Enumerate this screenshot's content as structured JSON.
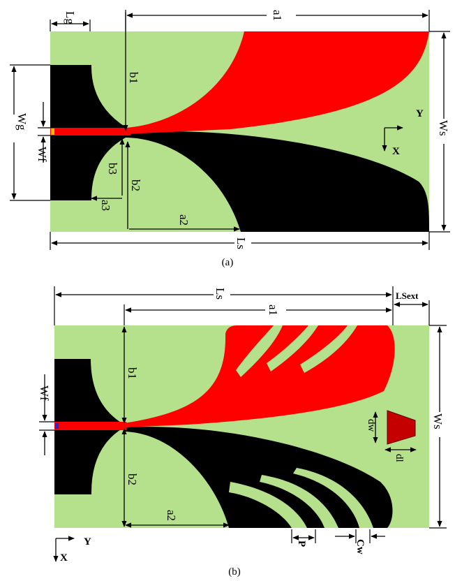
{
  "colors": {
    "substrate": "#b5e08c",
    "top_metal": "#ff0000",
    "bottom_metal": "#000000",
    "dielectric_element": "#c40000",
    "port": "#ffc000"
  },
  "icons": [
    "arrow-icon"
  ],
  "figure_a": {
    "caption": "(a)",
    "labels": {
      "lg": "Lg",
      "a1": "a1",
      "b1": "b1",
      "wg": "Wg",
      "wf": "Wf",
      "b3": "b3",
      "b2": "b2",
      "a3": "a3",
      "a2": "a2",
      "ls": "Ls",
      "ws": "Ws",
      "axis_y": "Y",
      "axis_x": "X"
    }
  },
  "figure_b": {
    "caption": "(b)",
    "labels": {
      "ls": "Ls",
      "lsext": "LSext",
      "a1": "a1",
      "b1": "b1",
      "wf": "Wf",
      "b2": "b2",
      "a2": "a2",
      "ws": "Ws",
      "dw": "dw",
      "dl": "dl",
      "p": "P",
      "cw": "Cw",
      "axis_y": "Y",
      "axis_x": "X"
    }
  }
}
